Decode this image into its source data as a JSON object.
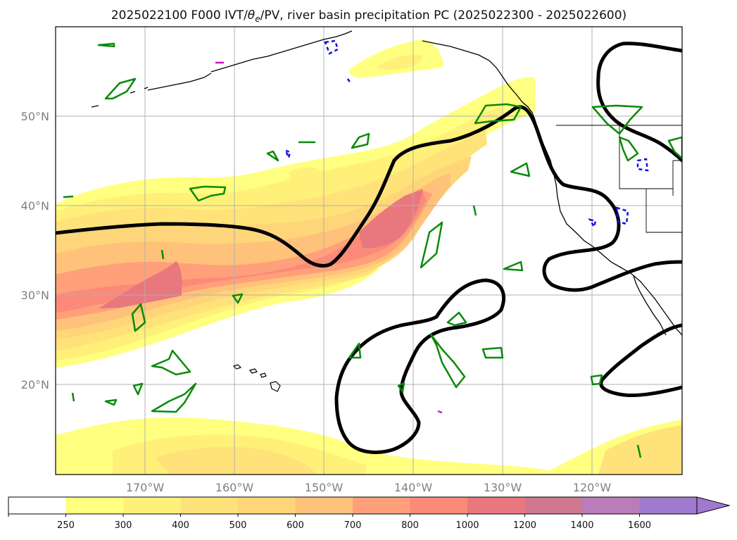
{
  "title": "2025022100 F000 IVT/θe/PV, river basin precipitation PC (2025022300 - 2025022600)",
  "title_parts": {
    "prefix": "2025022100 F000 IVT/",
    "theta": "θ",
    "sub": "e",
    "suffix": "/PV, river basin precipitation PC (2025022300 - 2025022600)"
  },
  "map": {
    "lon_range": [
      180,
      110
    ],
    "lat_range": [
      10,
      60
    ],
    "lat_labels": [
      {
        "text": "50°N",
        "lat": 50
      },
      {
        "text": "40°N",
        "lat": 40
      },
      {
        "text": "30°N",
        "lat": 30
      },
      {
        "text": "20°N",
        "lat": 20
      }
    ],
    "lon_labels": [
      {
        "text": "170°W",
        "lon": 170
      },
      {
        "text": "160°W",
        "lon": 160
      },
      {
        "text": "150°W",
        "lon": 150
      },
      {
        "text": "140°W",
        "lon": 140
      },
      {
        "text": "130°W",
        "lon": 130
      },
      {
        "text": "120°W",
        "lon": 120
      }
    ],
    "grid": true
  },
  "colorbar": {
    "levels": [
      "250",
      "300",
      "400",
      "500",
      "600",
      "700",
      "800",
      "1000",
      "1200",
      "1400",
      "1600"
    ],
    "colors": [
      "#ffffff",
      "#ffff80",
      "#fff07a",
      "#ffe27a",
      "#ffd57a",
      "#ffc27a",
      "#ffa07a",
      "#fb8a78",
      "#e8787e",
      "#d07890",
      "#bb7cba",
      "#a07ad0"
    ],
    "extend": "max"
  },
  "colors": {
    "ivt": [
      "#ffff80",
      "#fff07a",
      "#ffe27a",
      "#ffd57a",
      "#ffc27a",
      "#ffa07a",
      "#fb8a78",
      "#e8787e"
    ],
    "pv_contour": "#000000",
    "theta_e_green": "#0a8a0a",
    "blue_dashed": "#1010e0",
    "magenta": "#d010d0",
    "coast": "#000000",
    "grid": "#b0b0b0"
  }
}
